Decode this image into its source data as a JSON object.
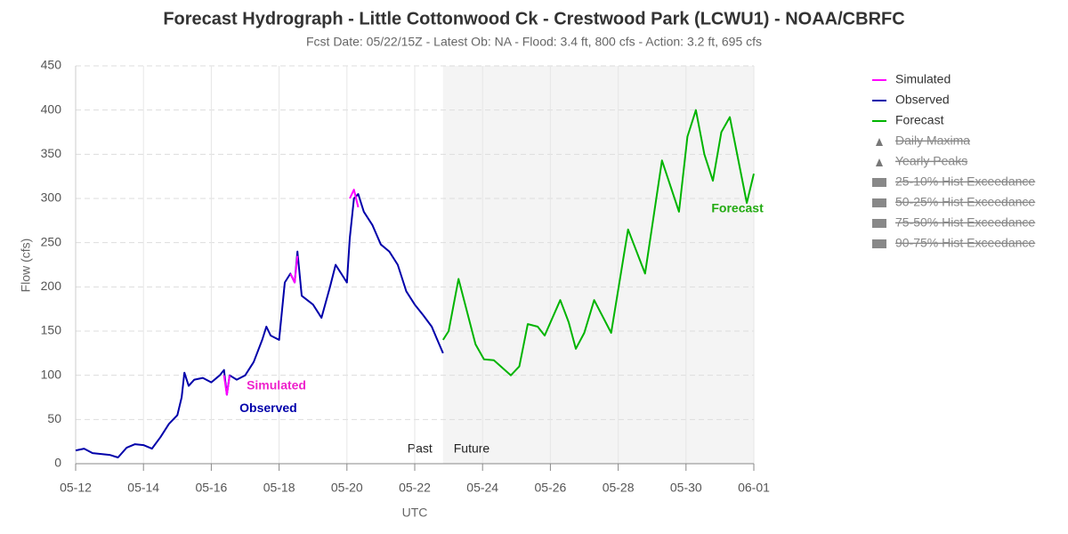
{
  "chart_data": {
    "type": "line",
    "title": "Forecast Hydrograph - Little Cottonwood Ck - Crestwood Park (LCWU1) - NOAA/CBRFC",
    "subtitle": "Fcst Date: 05/22/15Z - Latest Ob: NA - Flood: 3.4 ft, 800 cfs - Action: 3.2 ft, 695 cfs",
    "y_label": "Flow (cfs)",
    "x_label": "UTC",
    "xlim": [
      "05-12",
      "06-01"
    ],
    "xticks": [
      "05-12",
      "05-14",
      "05-16",
      "05-18",
      "05-20",
      "05-22",
      "05-24",
      "05-26",
      "05-28",
      "05-30",
      "06-01"
    ],
    "ylim": [
      0,
      450
    ],
    "yticks": [
      0,
      50,
      100,
      150,
      200,
      250,
      300,
      350,
      400,
      450
    ],
    "grid": true,
    "divider": {
      "x": "05-22 20:00",
      "left_label": "Past",
      "right_label": "Future"
    },
    "legend_position": "right",
    "series": [
      {
        "name": "Simulated",
        "color": "#ff00ff",
        "x": [
          "05-16 09:00",
          "05-16 11:00",
          "05-16 13:00",
          null,
          "05-18 08:00",
          "05-18 11:00",
          "05-18 13:00",
          null,
          "05-20 02:00",
          "05-20 05:00",
          "05-20 08:00"
        ],
        "values": [
          100,
          78,
          100,
          null,
          215,
          205,
          235,
          null,
          300,
          310,
          290
        ]
      },
      {
        "name": "Observed",
        "color": "#0000aa",
        "x": [
          "05-12 00:00",
          "05-12 06:00",
          "05-12 12:00",
          "05-12 18:00",
          "05-13 00:00",
          "05-13 06:00",
          "05-13 12:00",
          "05-13 18:00",
          "05-14 00:00",
          "05-14 06:00",
          "05-14 12:00",
          "05-14 18:00",
          "05-15 00:00",
          "05-15 03:00",
          "05-15 05:00",
          "05-15 08:00",
          "05-15 12:00",
          "05-15 18:00",
          "05-16 00:00",
          "05-16 06:00",
          "05-16 09:00",
          "05-16 11:00",
          "05-16 13:00",
          "05-16 18:00",
          "05-17 00:00",
          "05-17 06:00",
          "05-17 12:00",
          "05-17 15:00",
          "05-17 18:00",
          "05-18 00:00",
          "05-18 04:00",
          "05-18 08:00",
          "05-18 11:00",
          "05-18 13:00",
          "05-18 16:00",
          "05-19 00:00",
          "05-19 06:00",
          "05-19 12:00",
          "05-19 16:00",
          "05-19 20:00",
          "05-20 00:00",
          "05-20 02:00",
          "05-20 05:00",
          "05-20 08:00",
          "05-20 12:00",
          "05-20 18:00",
          "05-21 00:00",
          "05-21 06:00",
          "05-21 12:00",
          "05-21 18:00",
          "05-22 00:00",
          "05-22 06:00",
          "05-22 12:00",
          "05-22 16:00",
          "05-22 20:00"
        ],
        "values": [
          15,
          17,
          12,
          11,
          10,
          7,
          18,
          22,
          21,
          17,
          30,
          45,
          55,
          75,
          103,
          88,
          95,
          97,
          92,
          100,
          106,
          78,
          100,
          95,
          100,
          115,
          140,
          155,
          145,
          140,
          205,
          215,
          205,
          240,
          190,
          180,
          165,
          200,
          225,
          215,
          205,
          255,
          300,
          305,
          285,
          270,
          248,
          240,
          225,
          195,
          180,
          168,
          155,
          140,
          125
        ]
      },
      {
        "name": "Forecast",
        "color": "#00b400",
        "x": [
          "05-22 20:00",
          "05-23 00:00",
          "05-23 07:00",
          "05-23 19:00",
          "05-24 01:00",
          "05-24 08:00",
          "05-24 20:00",
          "05-25 02:00",
          "05-25 08:00",
          "05-25 15:00",
          "05-25 20:00",
          "05-26 07:00",
          "05-26 13:00",
          "05-26 18:00",
          "05-27 00:00",
          "05-27 07:00",
          "05-27 19:00",
          "05-28 07:00",
          "05-28 19:00",
          "05-29 07:00",
          "05-29 19:00",
          "05-30 01:00",
          "05-30 07:00",
          "05-30 13:00",
          "05-30 19:00",
          "05-31 01:00",
          "05-31 07:00",
          "05-31 19:00",
          "06-01 00:00"
        ],
        "values": [
          140,
          150,
          209,
          135,
          118,
          117,
          100,
          110,
          158,
          155,
          145,
          185,
          160,
          130,
          148,
          185,
          148,
          265,
          215,
          343,
          285,
          370,
          400,
          350,
          320,
          375,
          392,
          295,
          328
        ]
      }
    ],
    "annotations": [
      {
        "text": "Simulated",
        "x": "05-17 01:00",
        "y": 88,
        "color": "#ee22cc"
      },
      {
        "text": "Observed",
        "x": "05-16 20:00",
        "y": 62,
        "color": "#0000aa"
      },
      {
        "text": "Forecast",
        "x": "05-30 18:00",
        "y": 288,
        "color": "#22aa11"
      }
    ],
    "legend_hidden": [
      "Daily Maxima",
      "Yearly Peaks",
      "25-10% Hist Exceedance",
      "50-25% Hist Exceedance",
      "75-50% Hist Exceedance",
      "90-75% Hist Exceedance"
    ]
  }
}
